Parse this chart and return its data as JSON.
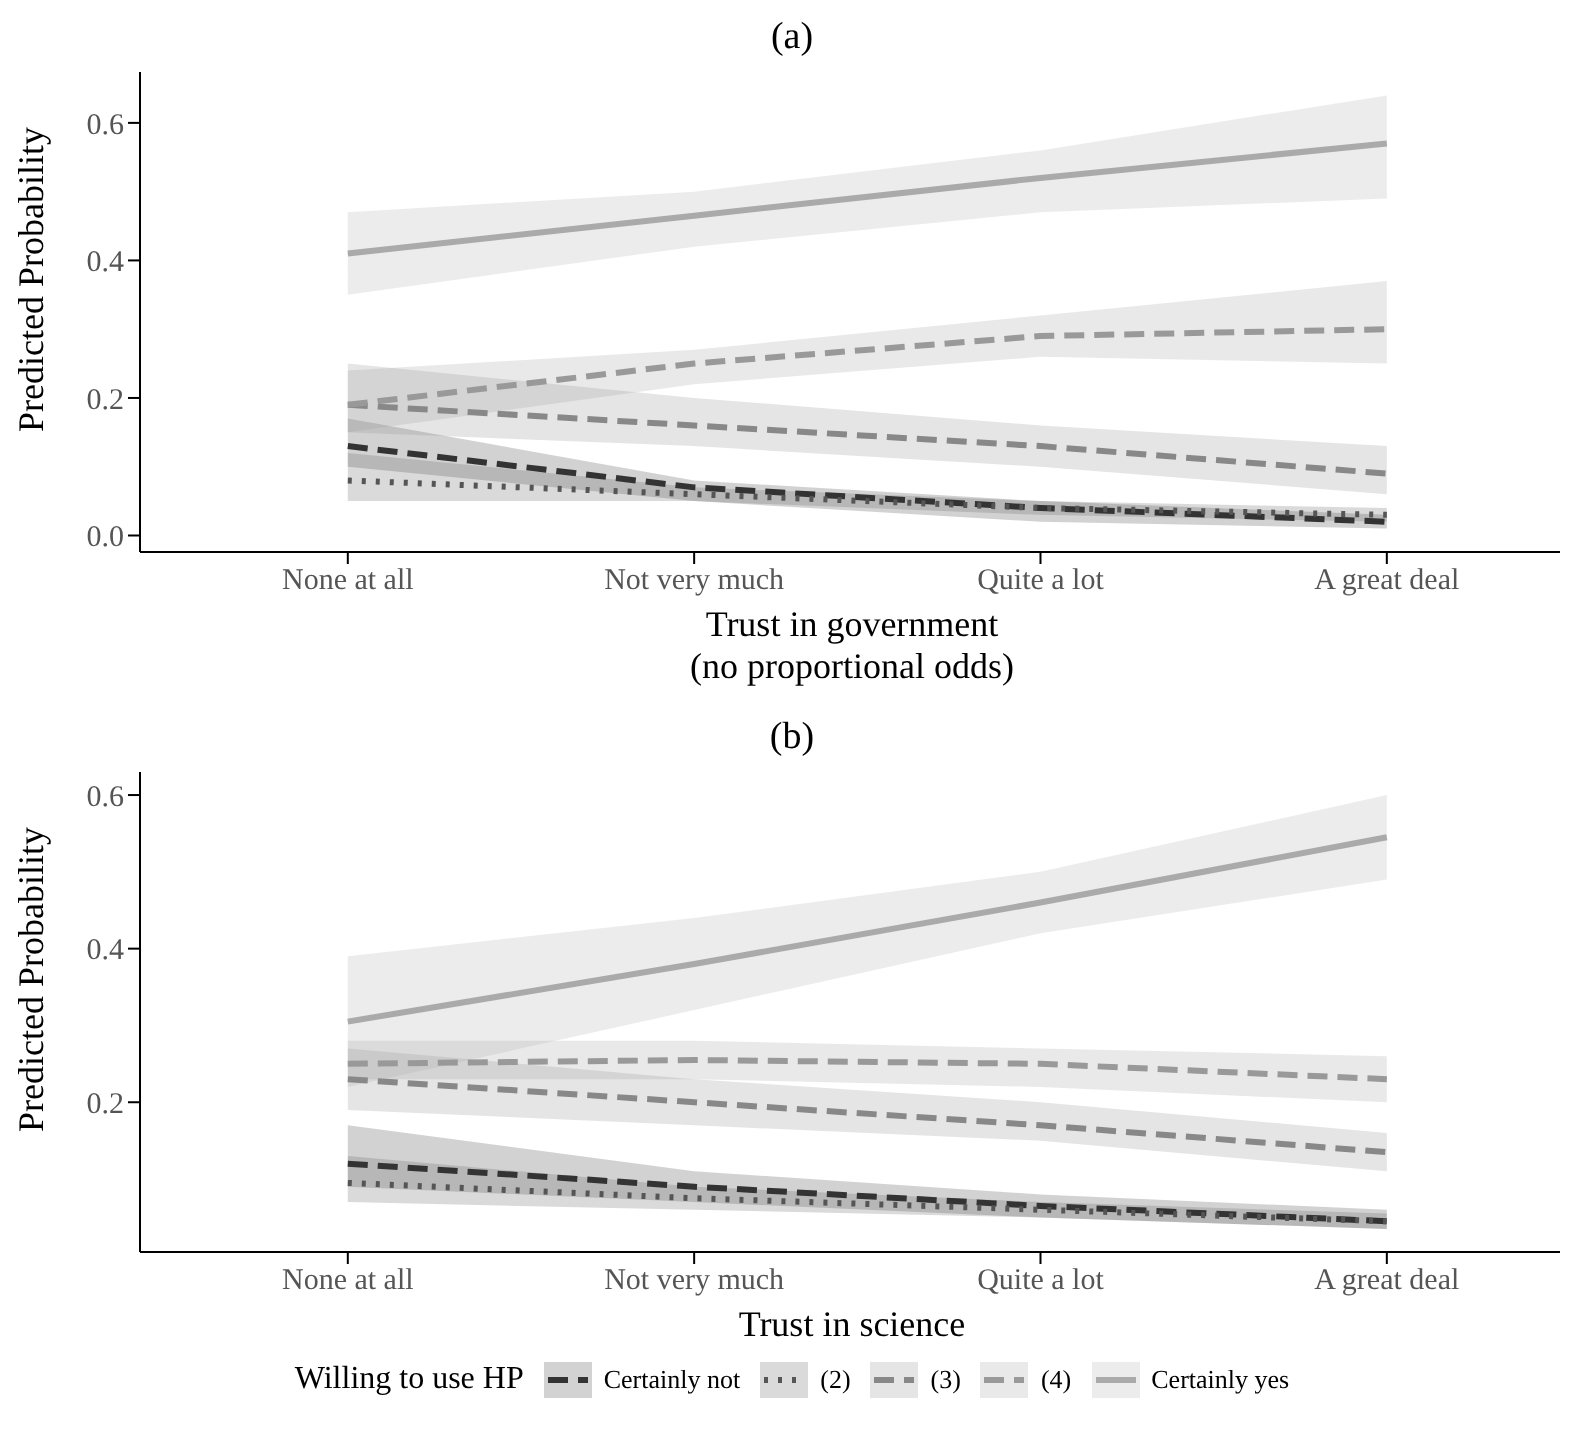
{
  "chart_data": [
    {
      "type": "line",
      "title": "(a)",
      "xlabel": "Trust in government\n(no proportional odds)",
      "ylabel": "Predicted Probability",
      "categories": [
        "None at all",
        "Not very much",
        "Quite a lot",
        "A great deal"
      ],
      "ylim": [
        -0.024,
        0.674
      ],
      "yticks": [
        {
          "value": 0,
          "label": "0.0"
        },
        0.2,
        0.4,
        0.6
      ],
      "grid": false,
      "legend": false,
      "marker": "none",
      "series": [
        {
          "color": "#333333",
          "line_style": "dashed",
          "values": [
            0.13,
            0.07,
            0.04,
            0.02
          ],
          "lower": [
            0.1,
            0.05,
            0.02,
            0.01
          ],
          "upper": [
            0.17,
            0.08,
            0.05,
            0.03
          ]
        },
        {
          "color": "#555555",
          "line_style": "dotted",
          "values": [
            0.08,
            0.06,
            0.04,
            0.03
          ],
          "lower": [
            0.05,
            0.05,
            0.03,
            0.02
          ],
          "upper": [
            0.12,
            0.07,
            0.05,
            0.04
          ]
        },
        {
          "color": "#888888",
          "line_style": "dashed",
          "values": [
            0.19,
            0.16,
            0.13,
            0.09
          ],
          "lower": [
            0.15,
            0.13,
            0.1,
            0.06
          ],
          "upper": [
            0.25,
            0.2,
            0.16,
            0.13
          ]
        },
        {
          "color": "#999999",
          "line_style": "dashed",
          "values": [
            0.19,
            0.25,
            0.29,
            0.3
          ],
          "lower": [
            0.15,
            0.22,
            0.26,
            0.25
          ],
          "upper": [
            0.24,
            0.27,
            0.32,
            0.37
          ]
        },
        {
          "color": "#aaaaaa",
          "line_style": "solid",
          "values": [
            0.41,
            0.465,
            0.52,
            0.57
          ],
          "lower": [
            0.35,
            0.42,
            0.47,
            0.49
          ],
          "upper": [
            0.47,
            0.5,
            0.56,
            0.64
          ]
        }
      ]
    },
    {
      "type": "line",
      "title": "(b)",
      "xlabel": "Trust in science",
      "ylabel": "Predicted Probability",
      "legend_title": "Willing to use HP",
      "categories": [
        "None at all",
        "Not very much",
        "Quite a lot",
        "A great deal"
      ],
      "ylim": [
        0.005,
        0.63
      ],
      "yticks": [
        0.2,
        0.4,
        0.6
      ],
      "grid": false,
      "legend": "bottom",
      "marker": "none",
      "series": [
        {
          "name": "Certainly not",
          "color": "#333333",
          "line_style": "dashed",
          "values": [
            0.12,
            0.09,
            0.065,
            0.045
          ],
          "lower": [
            0.09,
            0.07,
            0.05,
            0.035
          ],
          "upper": [
            0.17,
            0.11,
            0.08,
            0.06
          ]
        },
        {
          "name": "(2)",
          "color": "#555555",
          "line_style": "dotted",
          "values": [
            0.095,
            0.075,
            0.06,
            0.045
          ],
          "lower": [
            0.07,
            0.06,
            0.05,
            0.035
          ],
          "upper": [
            0.13,
            0.09,
            0.07,
            0.055
          ]
        },
        {
          "name": "(3)",
          "color": "#888888",
          "line_style": "dashed",
          "values": [
            0.23,
            0.2,
            0.17,
            0.135
          ],
          "lower": [
            0.19,
            0.17,
            0.15,
            0.11
          ],
          "upper": [
            0.27,
            0.23,
            0.2,
            0.16
          ]
        },
        {
          "name": "(4)",
          "color": "#999999",
          "line_style": "dashed",
          "values": [
            0.25,
            0.255,
            0.25,
            0.23
          ],
          "lower": [
            0.23,
            0.23,
            0.22,
            0.2
          ],
          "upper": [
            0.28,
            0.28,
            0.27,
            0.26
          ]
        },
        {
          "name": "Certainly yes",
          "color": "#aaaaaa",
          "line_style": "solid",
          "values": [
            0.305,
            0.38,
            0.46,
            0.545
          ],
          "lower": [
            0.22,
            0.32,
            0.42,
            0.49
          ],
          "upper": [
            0.39,
            0.44,
            0.5,
            0.6
          ]
        }
      ]
    }
  ]
}
